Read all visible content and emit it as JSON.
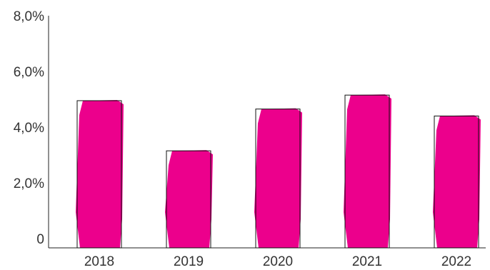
{
  "chart_data": {
    "type": "bar",
    "categories": [
      "2018",
      "2019",
      "2020",
      "2021",
      "2022"
    ],
    "values": [
      4.95,
      3.15,
      4.65,
      5.15,
      4.4
    ],
    "ylim": [
      0,
      8
    ],
    "yticks": [
      {
        "value": 0,
        "label": "0"
      },
      {
        "value": 2,
        "label": "2,0%"
      },
      {
        "value": 4,
        "label": "4,0%"
      },
      {
        "value": 6,
        "label": "6,0%"
      },
      {
        "value": 8,
        "label": "8,0%"
      }
    ],
    "grid": false,
    "legend": "none",
    "colors": {
      "bar_fill": "#EC008C",
      "bar_outline": "#111111",
      "axis": "#222222",
      "text": "#333333"
    }
  }
}
